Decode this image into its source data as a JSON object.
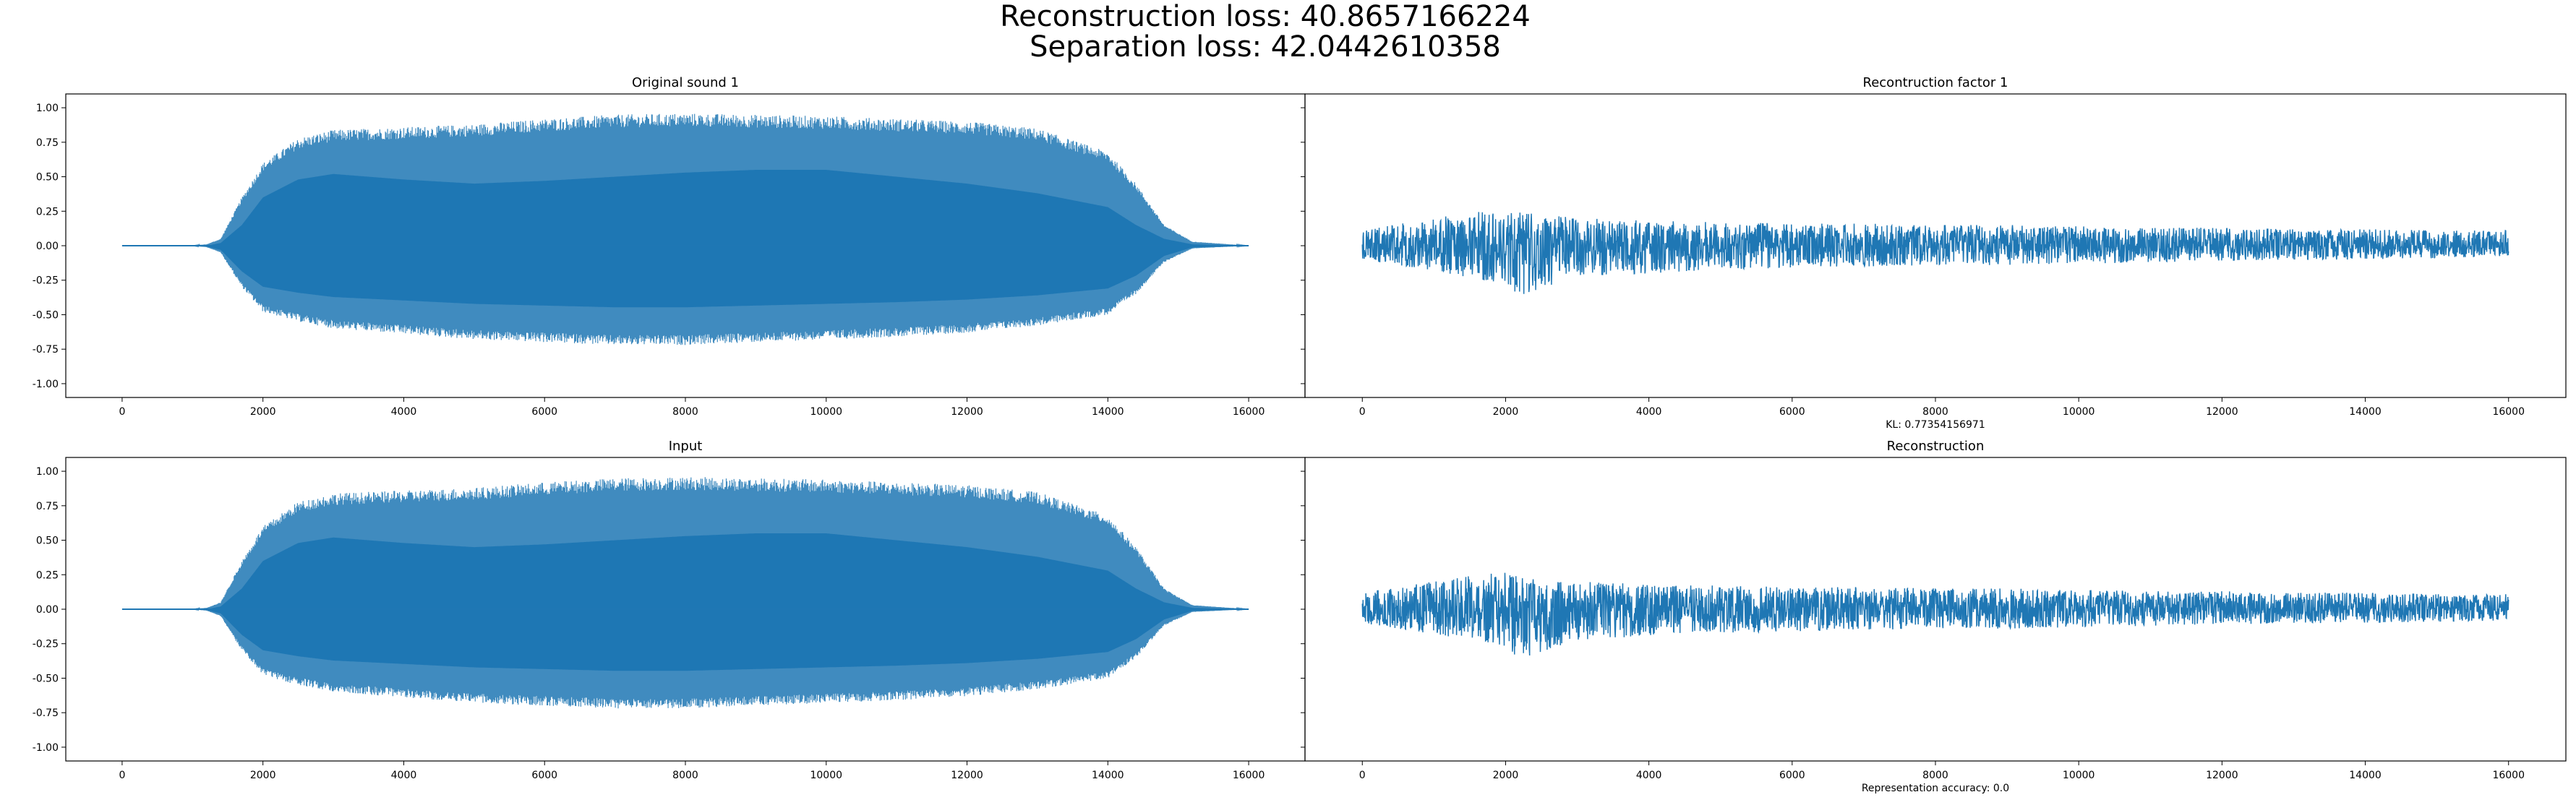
{
  "figure": {
    "suptitle_lines": [
      "Reconstruction loss: 40.8657166224",
      "Separation loss: 42.0442610358"
    ],
    "series_color": "#1f77b4"
  },
  "chart_data": [
    {
      "type": "line",
      "title": "Original sound 1",
      "xlabel": "",
      "ylabel": "",
      "xlim": [
        -800,
        16800
      ],
      "ylim": [
        -1.1,
        1.1
      ],
      "xticks": [
        0,
        2000,
        4000,
        6000,
        8000,
        10000,
        12000,
        14000,
        16000
      ],
      "yticks": [
        -1.0,
        -0.75,
        -0.5,
        -0.25,
        0.0,
        0.25,
        0.5,
        0.75,
        1.0
      ],
      "grid": false,
      "series": [
        {
          "signal": "amplitude-modulated tone",
          "x": [
            0,
            1000,
            1200,
            1400,
            1700,
            2000,
            2500,
            3000,
            4000,
            5000,
            6000,
            7000,
            8000,
            9000,
            10000,
            11000,
            12000,
            13000,
            14000,
            14400,
            14800,
            15200,
            16000
          ],
          "upper": [
            0.0,
            0.0,
            0.01,
            0.05,
            0.35,
            0.6,
            0.78,
            0.84,
            0.86,
            0.88,
            0.92,
            0.95,
            0.96,
            0.95,
            0.94,
            0.92,
            0.9,
            0.85,
            0.68,
            0.45,
            0.15,
            0.03,
            0.0
          ],
          "inner_upper": [
            0.0,
            0.0,
            0.0,
            0.02,
            0.15,
            0.35,
            0.48,
            0.52,
            0.48,
            0.45,
            0.47,
            0.5,
            0.53,
            0.55,
            0.55,
            0.5,
            0.45,
            0.38,
            0.28,
            0.15,
            0.05,
            0.01,
            0.0
          ],
          "lower": [
            0.0,
            0.0,
            -0.01,
            -0.05,
            -0.3,
            -0.48,
            -0.55,
            -0.6,
            -0.64,
            -0.68,
            -0.7,
            -0.72,
            -0.72,
            -0.7,
            -0.68,
            -0.66,
            -0.63,
            -0.58,
            -0.5,
            -0.35,
            -0.12,
            -0.02,
            0.0
          ]
        }
      ]
    },
    {
      "type": "line",
      "title": "Recontruction factor 1",
      "xlabel": "KL: 0.77354156971",
      "ylabel": "",
      "xlim": [
        -800,
        16800
      ],
      "ylim": [
        -1.1,
        1.1
      ],
      "xticks": [
        0,
        2000,
        4000,
        6000,
        8000,
        10000,
        12000,
        14000,
        16000
      ],
      "yticks": [],
      "grid": false,
      "series": [
        {
          "signal": "noise",
          "x": [
            0,
            1000,
            2000,
            2200,
            3000,
            4000,
            5000,
            6000,
            7000,
            8000,
            9000,
            10000,
            11000,
            12000,
            13000,
            14000,
            15000,
            16000
          ],
          "upper": [
            0.12,
            0.2,
            0.28,
            0.24,
            0.2,
            0.18,
            0.17,
            0.16,
            0.16,
            0.15,
            0.15,
            0.14,
            0.13,
            0.13,
            0.12,
            0.12,
            0.11,
            0.11
          ],
          "lower": [
            -0.1,
            -0.18,
            -0.28,
            -0.36,
            -0.22,
            -0.2,
            -0.17,
            -0.16,
            -0.15,
            -0.14,
            -0.14,
            -0.13,
            -0.12,
            -0.11,
            -0.1,
            -0.1,
            -0.09,
            -0.08
          ]
        }
      ]
    },
    {
      "type": "line",
      "title": "Input",
      "xlabel": "",
      "ylabel": "",
      "xlim": [
        -800,
        16800
      ],
      "ylim": [
        -1.1,
        1.1
      ],
      "xticks": [
        0,
        2000,
        4000,
        6000,
        8000,
        10000,
        12000,
        14000,
        16000
      ],
      "yticks": [
        -1.0,
        -0.75,
        -0.5,
        -0.25,
        0.0,
        0.25,
        0.5,
        0.75,
        1.0
      ],
      "grid": false,
      "series": [
        {
          "signal": "amplitude-modulated tone",
          "x": [
            0,
            1000,
            1200,
            1400,
            1700,
            2000,
            2500,
            3000,
            4000,
            5000,
            6000,
            7000,
            8000,
            9000,
            10000,
            11000,
            12000,
            13000,
            14000,
            14400,
            14800,
            15200,
            16000
          ],
          "upper": [
            0.0,
            0.0,
            0.01,
            0.05,
            0.35,
            0.6,
            0.78,
            0.84,
            0.86,
            0.88,
            0.92,
            0.95,
            0.96,
            0.95,
            0.94,
            0.92,
            0.9,
            0.85,
            0.68,
            0.45,
            0.15,
            0.03,
            0.0
          ],
          "inner_upper": [
            0.0,
            0.0,
            0.0,
            0.02,
            0.15,
            0.35,
            0.48,
            0.52,
            0.48,
            0.45,
            0.47,
            0.5,
            0.53,
            0.55,
            0.55,
            0.5,
            0.45,
            0.38,
            0.28,
            0.15,
            0.05,
            0.01,
            0.0
          ],
          "lower": [
            0.0,
            0.0,
            -0.01,
            -0.05,
            -0.3,
            -0.48,
            -0.55,
            -0.6,
            -0.64,
            -0.68,
            -0.7,
            -0.72,
            -0.72,
            -0.7,
            -0.68,
            -0.66,
            -0.63,
            -0.58,
            -0.5,
            -0.35,
            -0.12,
            -0.02,
            0.0
          ]
        }
      ]
    },
    {
      "type": "line",
      "title": "Reconstruction",
      "xlabel": "Representation accuracy: 0.0",
      "ylabel": "",
      "xlim": [
        -800,
        16800
      ],
      "ylim": [
        -1.1,
        1.1
      ],
      "xticks": [
        0,
        2000,
        4000,
        6000,
        8000,
        10000,
        12000,
        14000,
        16000
      ],
      "yticks": [],
      "grid": false,
      "series": [
        {
          "signal": "noise",
          "x": [
            0,
            1000,
            2000,
            2200,
            3000,
            4000,
            5000,
            6000,
            7000,
            8000,
            9000,
            10000,
            11000,
            12000,
            13000,
            14000,
            15000,
            16000
          ],
          "upper": [
            0.12,
            0.2,
            0.28,
            0.24,
            0.2,
            0.18,
            0.17,
            0.16,
            0.16,
            0.15,
            0.15,
            0.14,
            0.13,
            0.13,
            0.12,
            0.12,
            0.11,
            0.11
          ],
          "lower": [
            -0.1,
            -0.18,
            -0.28,
            -0.36,
            -0.22,
            -0.2,
            -0.17,
            -0.16,
            -0.15,
            -0.14,
            -0.14,
            -0.13,
            -0.12,
            -0.11,
            -0.1,
            -0.1,
            -0.09,
            -0.08
          ]
        }
      ]
    }
  ]
}
